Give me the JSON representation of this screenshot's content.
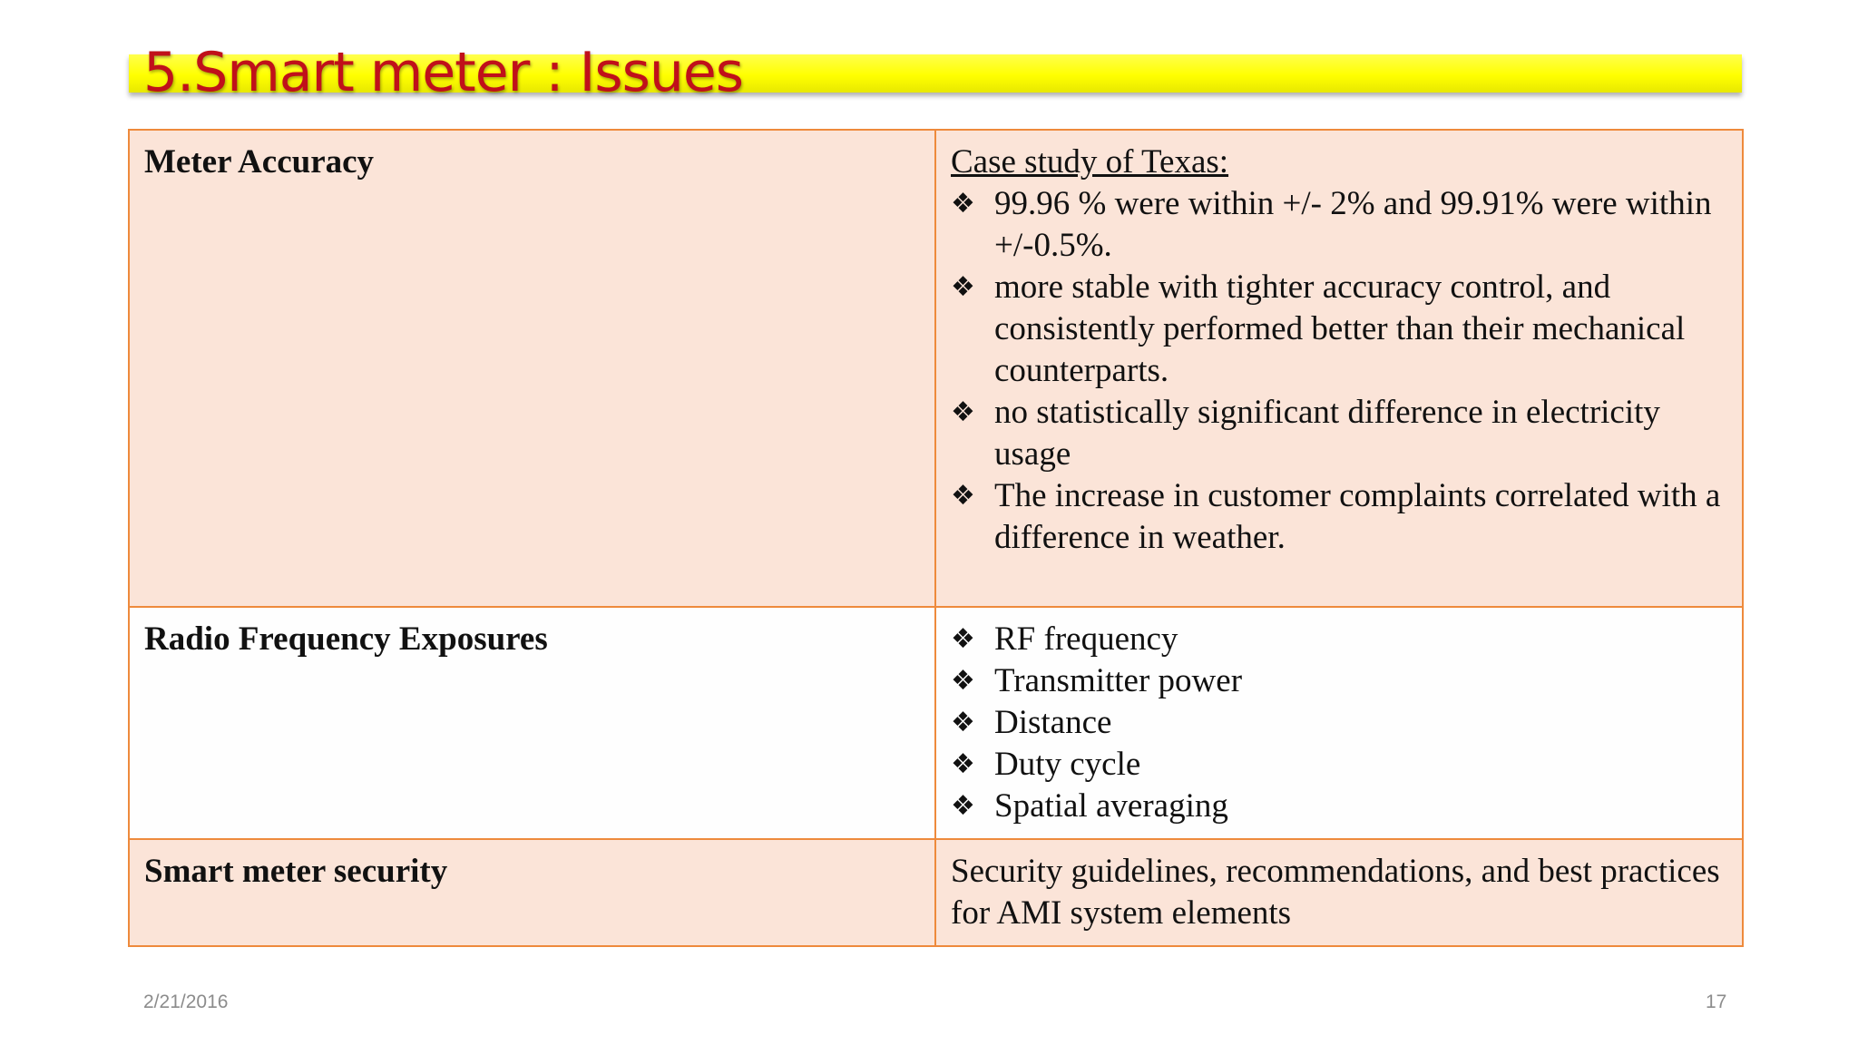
{
  "slide": {
    "title": "5.Smart meter : Issues",
    "footer_date": "2/21/2016",
    "page_number": "17",
    "title_color": "#c0101a",
    "title_bar_color": "#ffff00",
    "table_border_color": "#ee8a3c",
    "shaded_row_color": "#fbe4d8"
  },
  "bullet_icon": "diamond-bullet-icon",
  "bullet_glyph": "❖",
  "table": {
    "rows": [
      {
        "label": "Meter Accuracy",
        "heading": "Case study of Texas:",
        "bullets": [
          "99.96 % were within +/- 2% and 99.91% were within +/-0.5%.",
          "more stable with tighter accuracy control, and consistently performed better than their mechanical counterparts.",
          "no statistically significant difference in electricity usage",
          "The increase in customer complaints correlated with a difference in weather."
        ]
      },
      {
        "label": "Radio Frequency Exposures",
        "bullets": [
          "RF frequency",
          "Transmitter power",
          "Distance",
          "Duty cycle",
          "Spatial averaging"
        ]
      },
      {
        "label": "Smart meter security",
        "text": "Security guidelines, recommendations, and best practices for AMI system elements"
      }
    ]
  }
}
